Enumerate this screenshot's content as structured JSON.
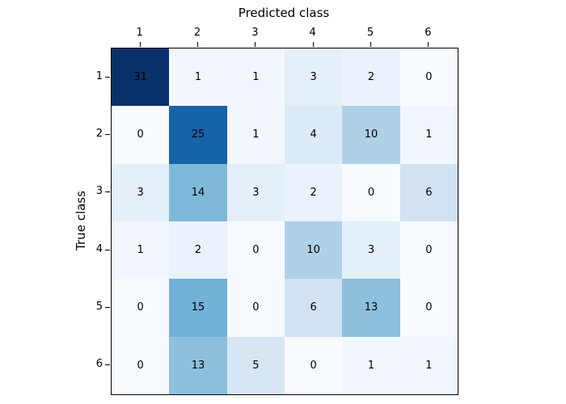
{
  "figure": {
    "background_color": "#ffffff",
    "spine_color": "#000000",
    "tick_color": "#000000"
  },
  "chart_data": {
    "type": "heatmap",
    "title": "",
    "xlabel": "Predicted class",
    "ylabel": "True class",
    "x_axis_position": "top",
    "x_tick_labels": [
      "1",
      "2",
      "3",
      "4",
      "5",
      "6"
    ],
    "y_tick_labels": [
      "1",
      "2",
      "3",
      "4",
      "5",
      "6"
    ],
    "matrix": [
      [
        31,
        1,
        1,
        3,
        2,
        0
      ],
      [
        0,
        25,
        1,
        4,
        10,
        1
      ],
      [
        3,
        14,
        3,
        2,
        0,
        6
      ],
      [
        1,
        2,
        0,
        10,
        3,
        0
      ],
      [
        0,
        15,
        0,
        6,
        13,
        0
      ],
      [
        0,
        13,
        5,
        0,
        1,
        1
      ]
    ],
    "vmin": 0,
    "vmax": 31,
    "colormap": "Blues",
    "colormap_anchors": [
      "#f7fbff",
      "#deebf7",
      "#c6dbef",
      "#9ecae1",
      "#6baed6",
      "#4292c6",
      "#2171b5",
      "#08519c",
      "#08306b"
    ],
    "annotation_color": "#000000",
    "grid": "off",
    "legend": "none",
    "colorbar": "none"
  }
}
